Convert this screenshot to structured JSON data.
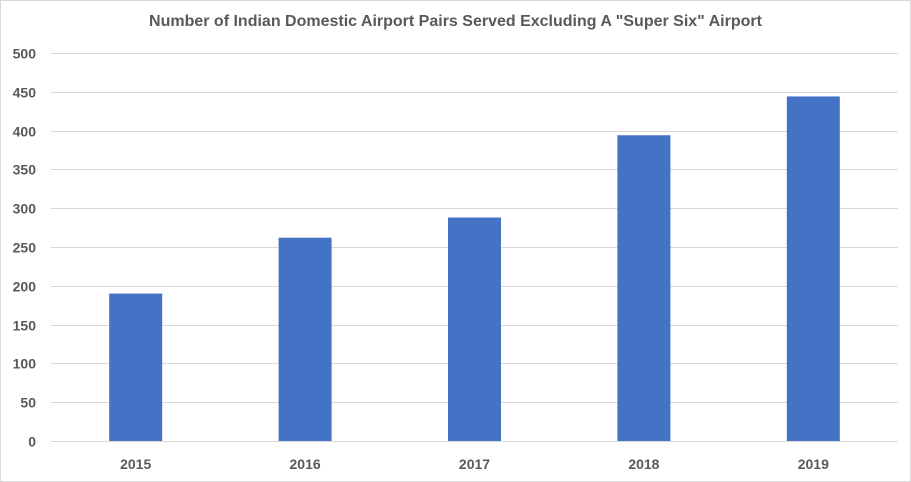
{
  "chart_data": {
    "type": "bar",
    "title": "Number of Indian Domestic Airport Pairs Served Excluding A \"Super Six\" Airport",
    "xlabel": "",
    "ylabel": "",
    "categories": [
      "2015",
      "2016",
      "2017",
      "2018",
      "2019"
    ],
    "values": [
      190,
      262,
      288,
      394,
      444
    ],
    "ylim": [
      0,
      500
    ],
    "yticks": [
      0,
      50,
      100,
      150,
      200,
      250,
      300,
      350,
      400,
      450,
      500
    ],
    "grid": true,
    "legend": "none",
    "bar_color": "#4472c4",
    "grid_color": "#d9d9d9",
    "text_color": "#595959"
  }
}
